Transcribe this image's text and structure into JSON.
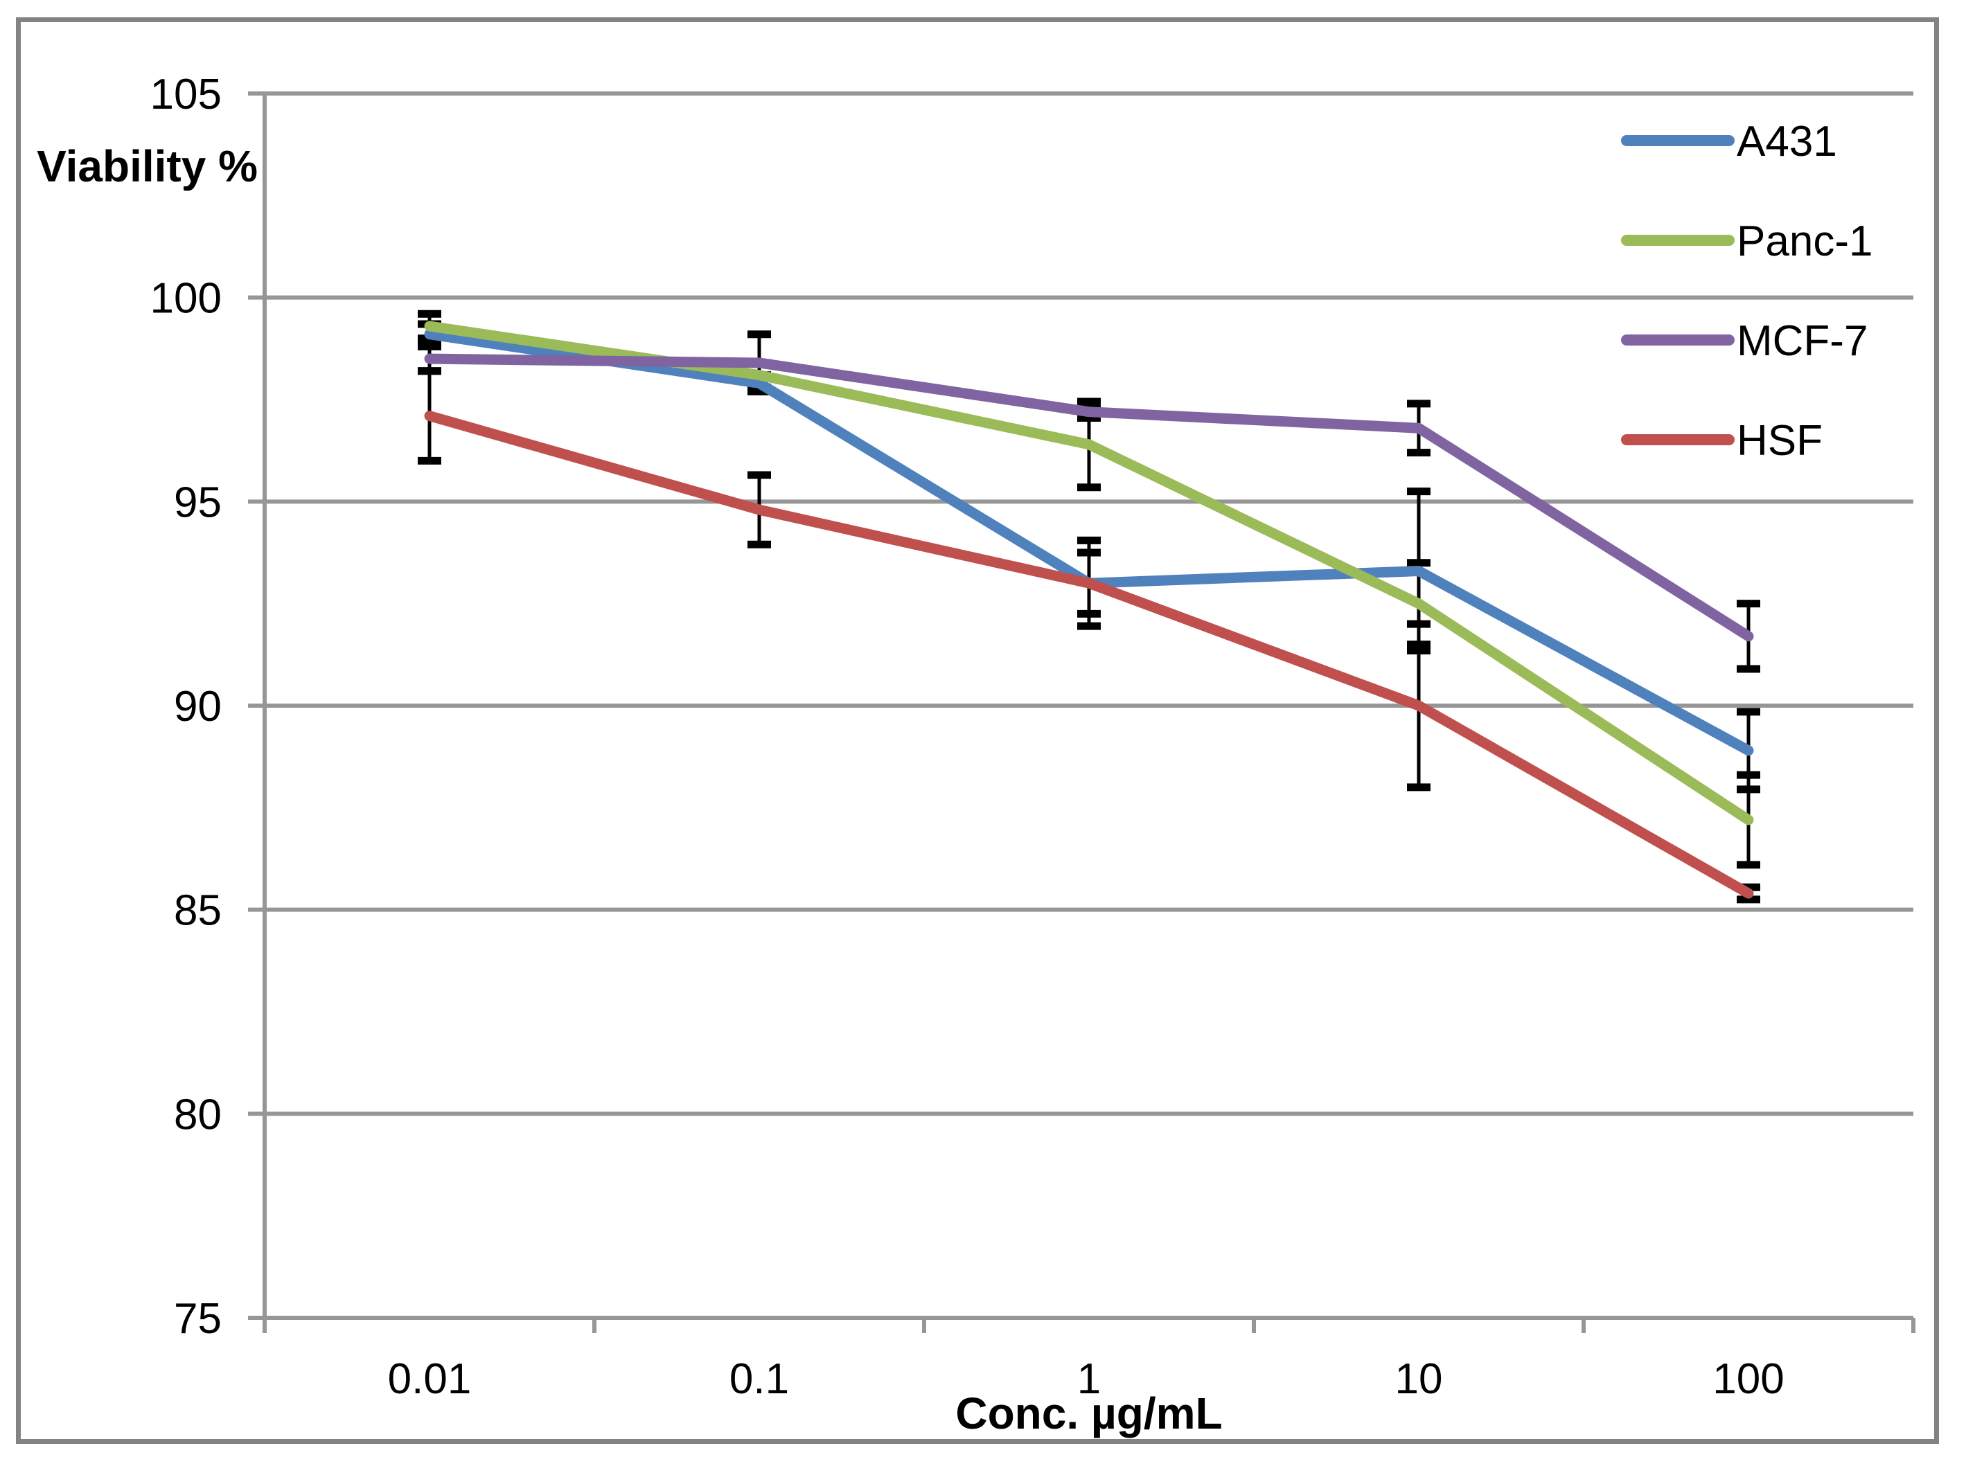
{
  "figure": {
    "background": "#FFFFFF",
    "border_color": "#838383",
    "axis_color": "#969696",
    "gridline_color": "#969696",
    "error_bar_color": "#000000",
    "text_color": "#000000"
  },
  "chart_data": {
    "type": "line",
    "title": "",
    "xlabel": "Conc. µg/mL",
    "ylabel": "Viability %",
    "categories": [
      "0.01",
      "0.1",
      "1",
      "10",
      "100"
    ],
    "x_scale": "categorical (log-spaced concentrations)",
    "ylim": [
      75,
      105
    ],
    "yticks": [
      105,
      100,
      95,
      90,
      85,
      80,
      75
    ],
    "grid": "horizontal gridlines on",
    "legend_position": "top-right inside plot",
    "error_bars": "vertical, black, with caps",
    "series": [
      {
        "name": "A431",
        "color": "#4F81BD",
        "values": [
          99.1,
          97.9,
          93.0,
          93.3,
          88.9
        ],
        "errors": [
          0.25,
          0.2,
          0.75,
          1.95,
          0.95
        ]
      },
      {
        "name": "Panc-1",
        "color": "#9BBB59",
        "values": [
          99.3,
          98.1,
          96.4,
          92.5,
          87.2
        ],
        "errors": [
          0.3,
          0.3,
          1.05,
          1.0,
          1.1
        ]
      },
      {
        "name": "MCF-7",
        "color": "#8064A2",
        "values": [
          98.5,
          98.4,
          97.2,
          96.8,
          91.7
        ],
        "errors": [
          0.3,
          0.7,
          0.15,
          0.6,
          0.8
        ]
      },
      {
        "name": "HSF",
        "color": "#C0504D",
        "values": [
          97.1,
          94.8,
          93.0,
          90.0,
          85.4
        ],
        "errors": [
          1.1,
          0.85,
          1.05,
          2.0,
          0.15
        ]
      }
    ]
  }
}
